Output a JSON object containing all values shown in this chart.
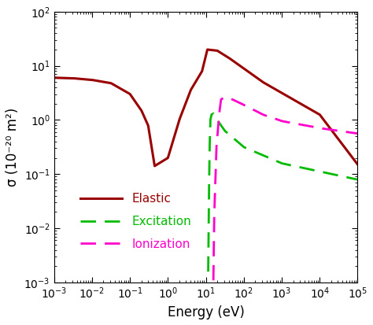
{
  "xlabel": "Energy (eV)",
  "ylabel": "σ (10⁻²⁰ m²)",
  "xlim": [
    0.001,
    100000.0
  ],
  "ylim": [
    0.001,
    100.0
  ],
  "elastic_color": "#990000",
  "excitation_color": "#00BB00",
  "ionization_color": "#FF00CC",
  "elastic_lw": 2.2,
  "dashed_lw": 2.0,
  "legend_labels": [
    "Elastic",
    "Excitation",
    "Ionization"
  ],
  "legend_fontsize": 11
}
